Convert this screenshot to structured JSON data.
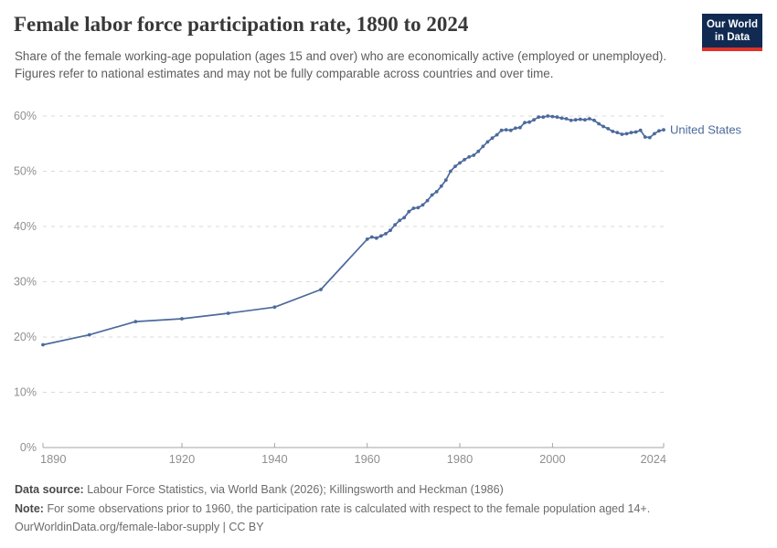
{
  "header": {
    "title": "Female labor force participation rate, 1890 to 2024",
    "subtitle": "Share of the female working-age population (ages 15 and over) who are economically active (employed or unemployed). Figures refer to national estimates and may not be fully comparable across countries and over time.",
    "logo_line1": "Our World",
    "logo_line2": "in Data"
  },
  "chart_data": {
    "type": "line",
    "title": "Female labor force participation rate, 1890 to 2024",
    "series_label": "United States",
    "x": [
      1890,
      1900,
      1910,
      1920,
      1930,
      1940,
      1950,
      1960,
      1961,
      1962,
      1963,
      1964,
      1965,
      1966,
      1967,
      1968,
      1969,
      1970,
      1971,
      1972,
      1973,
      1974,
      1975,
      1976,
      1977,
      1978,
      1979,
      1980,
      1981,
      1982,
      1983,
      1984,
      1985,
      1986,
      1987,
      1988,
      1989,
      1990,
      1991,
      1992,
      1993,
      1994,
      1995,
      1996,
      1997,
      1998,
      1999,
      2000,
      2001,
      2002,
      2003,
      2004,
      2005,
      2006,
      2007,
      2008,
      2009,
      2010,
      2011,
      2012,
      2013,
      2014,
      2015,
      2016,
      2017,
      2018,
      2019,
      2020,
      2021,
      2022,
      2023,
      2024
    ],
    "values": [
      18.6,
      20.4,
      22.8,
      23.3,
      24.3,
      25.4,
      28.6,
      37.7,
      38.1,
      37.9,
      38.3,
      38.7,
      39.3,
      40.3,
      41.1,
      41.6,
      42.7,
      43.3,
      43.4,
      43.9,
      44.7,
      45.7,
      46.3,
      47.3,
      48.4,
      50.0,
      50.9,
      51.5,
      52.1,
      52.6,
      52.9,
      53.6,
      54.5,
      55.3,
      56.0,
      56.6,
      57.4,
      57.5,
      57.4,
      57.8,
      57.9,
      58.8,
      58.9,
      59.3,
      59.8,
      59.8,
      60.0,
      59.9,
      59.8,
      59.6,
      59.5,
      59.2,
      59.3,
      59.4,
      59.3,
      59.5,
      59.2,
      58.6,
      58.1,
      57.7,
      57.2,
      57.0,
      56.7,
      56.8,
      57.0,
      57.1,
      57.4,
      56.2,
      56.1,
      56.8,
      57.3,
      57.5
    ],
    "xlim": [
      1890,
      2024
    ],
    "ylim": [
      0,
      60
    ],
    "x_ticks": [
      1890,
      1920,
      1940,
      1960,
      1980,
      2000,
      2024
    ],
    "y_ticks": [
      0,
      10,
      20,
      30,
      40,
      50,
      60
    ],
    "y_tick_suffix": "%",
    "grid": "horizontal-dashed",
    "legend_position": "right-of-line-end",
    "marker": "circle",
    "line_color": "#4c6a9c",
    "grid_color": "#dadada",
    "axis_color": "#a6a6a6",
    "tick_label_color": "#8f8f8f"
  },
  "footer": {
    "data_source_label": "Data source:",
    "data_source_text": "Labour Force Statistics, via World Bank (2026); Killingsworth and Heckman (1986)",
    "note_label": "Note:",
    "note_text": "For some observations prior to 1960, the participation rate is calculated with respect to the female population aged 14+.",
    "credit_line": "OurWorldinData.org/female-labor-supply | CC BY"
  }
}
